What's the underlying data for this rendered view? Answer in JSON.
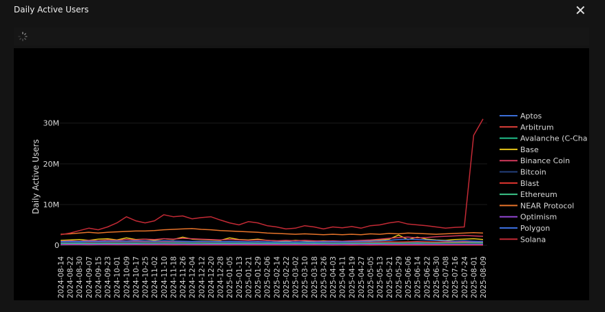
{
  "title": "Daily Active Users",
  "chart_data": {
    "type": "line",
    "y_label": "Daily Active Users",
    "x": [
      "2024-08-14",
      "2024-08-22",
      "2024-08-30",
      "2024-09-07",
      "2024-09-15",
      "2024-09-23",
      "2024-10-01",
      "2024-10-09",
      "2024-10-17",
      "2024-10-25",
      "2024-11-02",
      "2024-11-10",
      "2024-11-18",
      "2024-11-26",
      "2024-12-04",
      "2024-12-12",
      "2024-12-20",
      "2024-12-28",
      "2025-01-05",
      "2025-01-13",
      "2025-01-21",
      "2025-01-29",
      "2025-02-06",
      "2025-02-14",
      "2025-02-22",
      "2025-03-02",
      "2025-03-10",
      "2025-03-18",
      "2025-03-26",
      "2025-04-03",
      "2025-04-11",
      "2025-04-19",
      "2025-04-27",
      "2025-05-05",
      "2025-05-13",
      "2025-05-21",
      "2025-05-29",
      "2025-06-06",
      "2025-06-14",
      "2025-06-22",
      "2025-06-30",
      "2025-07-08",
      "2025-07-16",
      "2025-07-24",
      "2025-08-01",
      "2025-08-09"
    ],
    "ylim": [
      -1000000,
      33000000
    ],
    "yticks": [
      0,
      {
        "value": 10000000,
        "label": "10M"
      },
      {
        "value": 20000000,
        "label": "20M"
      },
      {
        "value": 30000000,
        "label": "30M"
      }
    ],
    "series": [
      {
        "name": "Aptos",
        "color": "#3b6fd8",
        "values": [
          600000,
          650000,
          700000,
          650000,
          700000,
          750000,
          700000,
          800000,
          750000,
          700000,
          750000,
          800000,
          850000,
          800000,
          750000,
          700000,
          700000,
          650000,
          700000,
          650000,
          600000,
          650000,
          600000,
          600000,
          550000,
          600000,
          550000,
          600000,
          550000,
          600000,
          550000,
          600000,
          650000,
          600000,
          650000,
          700000,
          750000,
          800000,
          700000,
          750000,
          700000,
          650000,
          700000,
          750000,
          700000,
          700000
        ]
      },
      {
        "name": "Arbitrum",
        "color": "#e0403a",
        "values": [
          800000,
          850000,
          900000,
          850000,
          800000,
          900000,
          850000,
          900000,
          950000,
          900000,
          850000,
          900000,
          950000,
          900000,
          850000,
          800000,
          850000,
          800000,
          900000,
          850000,
          800000,
          750000,
          800000,
          750000,
          700000,
          750000,
          700000,
          750000,
          700000,
          750000,
          800000,
          750000,
          700000,
          750000,
          800000,
          850000,
          800000,
          850000,
          900000,
          850000,
          800000,
          850000,
          800000,
          850000,
          900000,
          850000
        ]
      },
      {
        "name": "Avalanche (C-Cha",
        "color": "#21c08b",
        "values": [
          100000,
          120000,
          110000,
          100000,
          120000,
          130000,
          110000,
          120000,
          140000,
          130000,
          120000,
          130000,
          150000,
          140000,
          130000,
          120000,
          110000,
          120000,
          130000,
          120000,
          110000,
          100000,
          110000,
          100000,
          90000,
          100000,
          110000,
          100000,
          90000,
          100000,
          110000,
          100000,
          120000,
          110000,
          100000,
          110000,
          120000,
          110000,
          100000,
          110000,
          120000,
          110000,
          100000,
          110000,
          120000,
          110000
        ]
      },
      {
        "name": "Base",
        "color": "#e6c619",
        "values": [
          1200000,
          1300000,
          1400000,
          1200000,
          1500000,
          1600000,
          1300000,
          1800000,
          1400000,
          1500000,
          1200000,
          1600000,
          1400000,
          2000000,
          1500000,
          1400000,
          1300000,
          1200000,
          1800000,
          1400000,
          1300000,
          1500000,
          1200000,
          1100000,
          1000000,
          1200000,
          1100000,
          1000000,
          1100000,
          1000000,
          900000,
          1000000,
          1100000,
          1200000,
          1300000,
          1500000,
          2500000,
          1400000,
          2000000,
          1500000,
          1300000,
          1200000,
          1400000,
          1500000,
          1600000,
          1400000
        ]
      },
      {
        "name": "Binance Coin",
        "color": "#d33a5c",
        "values": [
          1000000,
          1100000,
          1000000,
          1200000,
          1100000,
          1300000,
          1200000,
          1400000,
          1300000,
          1500000,
          1400000,
          1600000,
          1500000,
          1700000,
          1600000,
          1500000,
          1400000,
          1300000,
          1400000,
          1300000,
          1200000,
          1300000,
          1200000,
          1100000,
          1200000,
          1100000,
          1200000,
          1100000,
          1000000,
          1100000,
          1000000,
          1100000,
          1200000,
          1300000,
          1500000,
          1700000,
          1900000,
          2000000,
          1800000,
          1900000,
          2100000,
          2200000,
          2300000,
          2400000,
          2300000,
          2200000
        ]
      },
      {
        "name": "Bitcoin",
        "color": "#23407c",
        "values": [
          600000,
          620000,
          600000,
          610000,
          630000,
          620000,
          640000,
          650000,
          660000,
          640000,
          650000,
          670000,
          660000,
          650000,
          640000,
          630000,
          620000,
          610000,
          620000,
          610000,
          600000,
          590000,
          600000,
          590000,
          580000,
          590000,
          580000,
          570000,
          580000,
          570000,
          560000,
          570000,
          580000,
          570000,
          560000,
          570000,
          560000,
          550000,
          560000,
          550000,
          540000,
          550000,
          540000,
          550000,
          540000,
          530000
        ]
      },
      {
        "name": "Blast",
        "color": "#e53630",
        "values": [
          150000,
          140000,
          130000,
          120000,
          130000,
          120000,
          110000,
          120000,
          110000,
          100000,
          110000,
          100000,
          90000,
          100000,
          90000,
          80000,
          90000,
          80000,
          70000,
          80000,
          70000,
          60000,
          70000,
          60000,
          50000,
          60000,
          50000,
          60000,
          50000,
          40000,
          50000,
          40000,
          50000,
          40000,
          50000,
          40000,
          30000,
          40000,
          30000,
          40000,
          30000,
          40000,
          30000,
          40000,
          30000,
          40000
        ]
      },
      {
        "name": "Ethereum",
        "color": "#3cc78a",
        "values": [
          450000,
          460000,
          470000,
          450000,
          460000,
          480000,
          470000,
          490000,
          480000,
          500000,
          510000,
          520000,
          530000,
          520000,
          510000,
          500000,
          490000,
          480000,
          490000,
          480000,
          470000,
          460000,
          470000,
          460000,
          450000,
          460000,
          450000,
          460000,
          450000,
          440000,
          450000,
          460000,
          470000,
          480000,
          490000,
          500000,
          510000,
          520000,
          510000,
          520000,
          530000,
          540000,
          550000,
          560000,
          570000,
          560000
        ]
      },
      {
        "name": "NEAR Protocol",
        "color": "#e8742a",
        "values": [
          2700000,
          2800000,
          3000000,
          3200000,
          3000000,
          3200000,
          3300000,
          3400000,
          3500000,
          3500000,
          3600000,
          3800000,
          3900000,
          4000000,
          4100000,
          3900000,
          3800000,
          3600000,
          3500000,
          3400000,
          3300000,
          3200000,
          3000000,
          2900000,
          2800000,
          2700000,
          2800000,
          2700000,
          2600000,
          2700000,
          2600000,
          2700000,
          2600000,
          2800000,
          2700000,
          2900000,
          2800000,
          3000000,
          2900000,
          2800000,
          2700000,
          2800000,
          2900000,
          3000000,
          3100000,
          3000000
        ]
      },
      {
        "name": "Optimism",
        "color": "#9146d2",
        "values": [
          200000,
          210000,
          220000,
          210000,
          230000,
          240000,
          230000,
          250000,
          240000,
          260000,
          250000,
          270000,
          260000,
          250000,
          240000,
          230000,
          240000,
          230000,
          220000,
          230000,
          220000,
          210000,
          220000,
          210000,
          200000,
          210000,
          200000,
          210000,
          200000,
          190000,
          200000,
          210000,
          200000,
          210000,
          220000,
          230000,
          240000,
          230000,
          240000,
          230000,
          220000,
          230000,
          220000,
          230000,
          240000,
          230000
        ]
      },
      {
        "name": "Polygon",
        "color": "#3b6fe0",
        "values": [
          900000,
          950000,
          900000,
          1000000,
          950000,
          1000000,
          1050000,
          1000000,
          1100000,
          1050000,
          1000000,
          1100000,
          1050000,
          1000000,
          950000,
          1000000,
          950000,
          900000,
          950000,
          900000,
          850000,
          900000,
          850000,
          800000,
          850000,
          800000,
          850000,
          800000,
          850000,
          900000,
          850000,
          900000,
          950000,
          1000000,
          1100000,
          1200000,
          1400000,
          1500000,
          1400000,
          1300000,
          1200000,
          1100000,
          1000000,
          1100000,
          1000000,
          950000
        ]
      },
      {
        "name": "Solana",
        "color": "#c42a35",
        "values": [
          2600000,
          3000000,
          3600000,
          4200000,
          3800000,
          4500000,
          5500000,
          7000000,
          6000000,
          5500000,
          6000000,
          7500000,
          7000000,
          7200000,
          6500000,
          6800000,
          7000000,
          6200000,
          5500000,
          5000000,
          5800000,
          5500000,
          4800000,
          4500000,
          4000000,
          4200000,
          4800000,
          4500000,
          4000000,
          4500000,
          4300000,
          4600000,
          4200000,
          4800000,
          5000000,
          5500000,
          5800000,
          5200000,
          5000000,
          4800000,
          4500000,
          4200000,
          4400000,
          4500000,
          27000000,
          31000000
        ]
      }
    ]
  }
}
